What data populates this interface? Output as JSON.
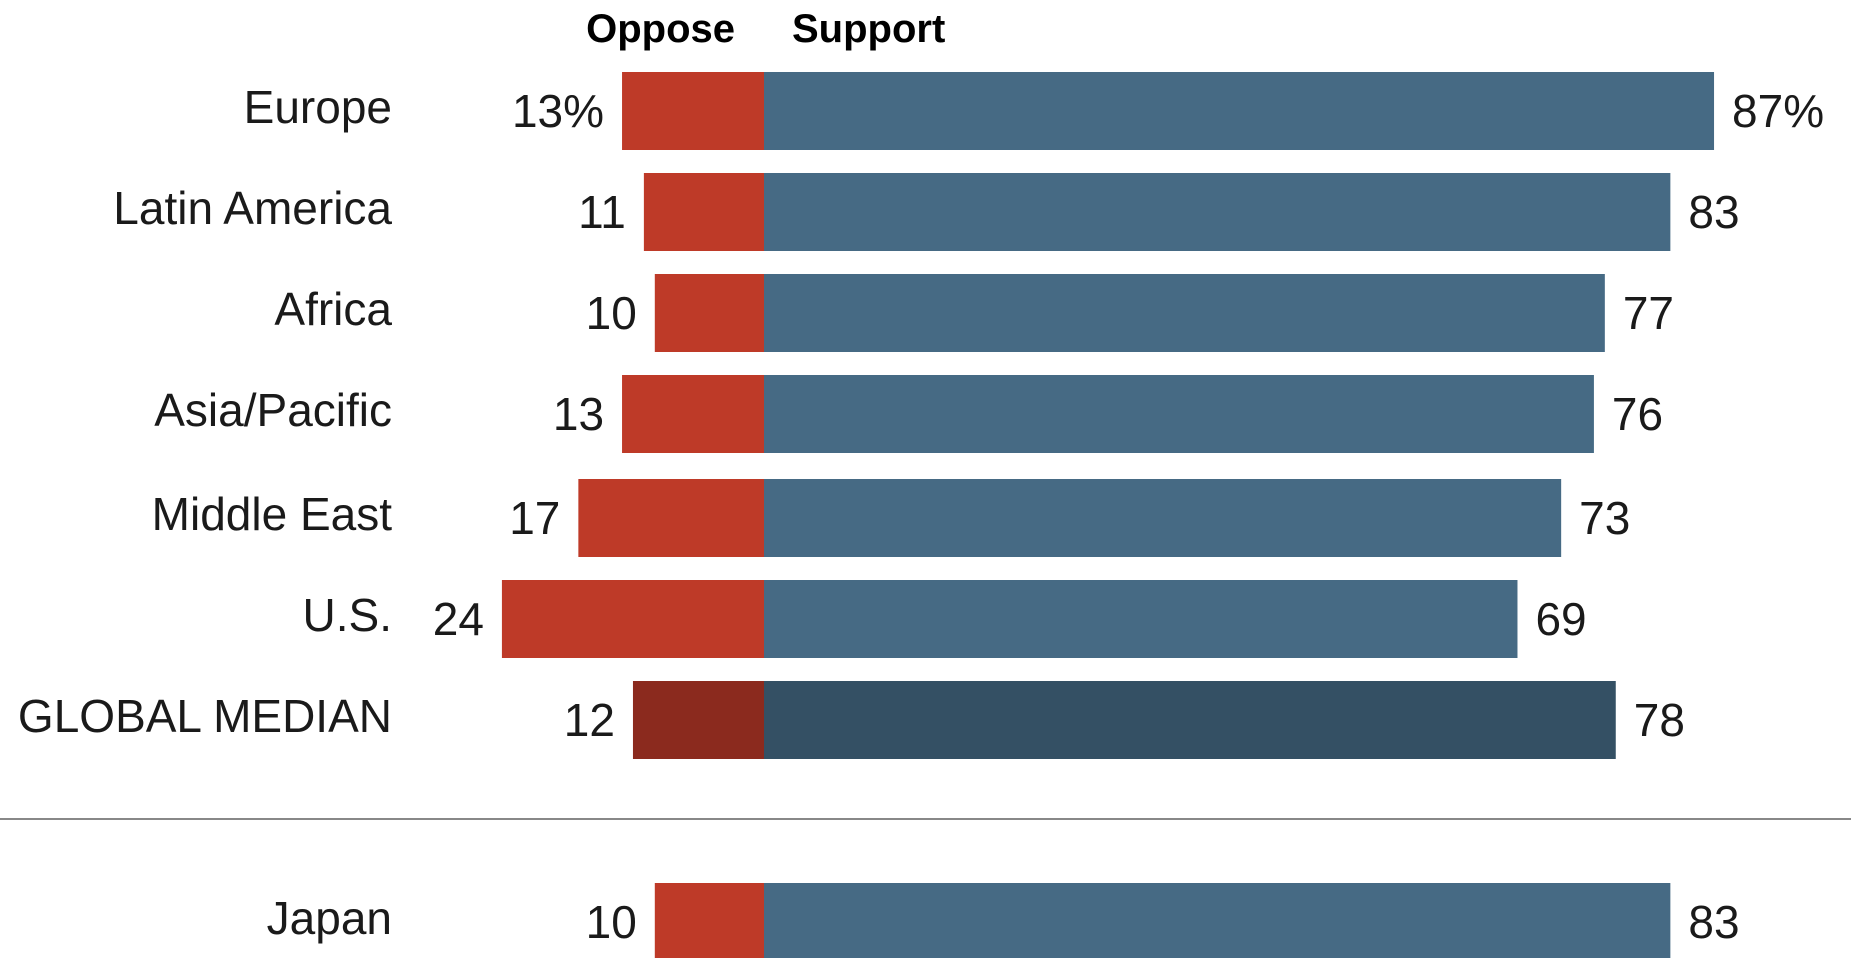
{
  "chart_data": {
    "type": "bar",
    "orientation": "horizontal-diverging",
    "series": [
      {
        "name": "Oppose",
        "color": "#be3a28",
        "highlight_color": "#8b2a1e"
      },
      {
        "name": "Support",
        "color": "#466a84",
        "highlight_color": "#345064"
      }
    ],
    "rows": [
      {
        "label": "Europe",
        "oppose": 13,
        "support": 87,
        "oppose_text": "13%",
        "support_text": "87%",
        "highlight": false
      },
      {
        "label": "Latin America",
        "oppose": 11,
        "support": 83,
        "oppose_text": "11",
        "support_text": "83",
        "highlight": false
      },
      {
        "label": "Africa",
        "oppose": 10,
        "support": 77,
        "oppose_text": "10",
        "support_text": "77",
        "highlight": false
      },
      {
        "label": "Asia/Pacific",
        "oppose": 13,
        "support": 76,
        "oppose_text": "13",
        "support_text": "76",
        "highlight": false
      },
      {
        "label": "Middle East",
        "oppose": 17,
        "support": 73,
        "oppose_text": "17",
        "support_text": "73",
        "highlight": false
      },
      {
        "label": "U.S.",
        "oppose": 24,
        "support": 69,
        "oppose_text": "24",
        "support_text": "69",
        "highlight": false
      },
      {
        "label": "GLOBAL MEDIAN",
        "oppose": 12,
        "support": 78,
        "oppose_text": "12",
        "support_text": "78",
        "highlight": true
      },
      {
        "label": "Japan",
        "oppose": 10,
        "support": 83,
        "oppose_text": "10",
        "support_text": "83",
        "highlight": false,
        "separated": true
      }
    ],
    "separator_color": "#888888"
  }
}
